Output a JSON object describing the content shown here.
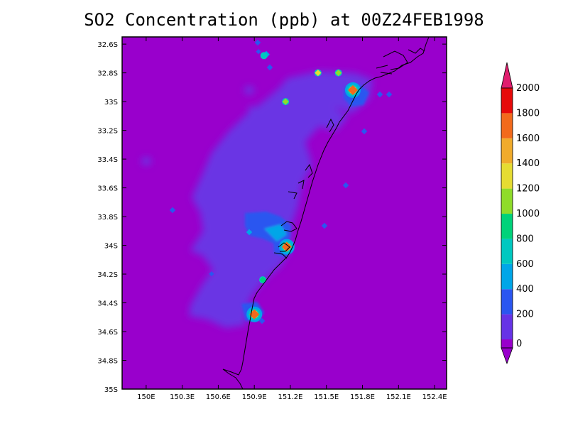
{
  "title": "SO2 Concentration (ppb) at 00Z24FEB1998",
  "chart_data": {
    "type": "heatmap",
    "title": "SO2 Concentration (ppb) at 00Z24FEB1998",
    "x_ticks": [
      "150E",
      "150.3E",
      "150.6E",
      "150.9E",
      "151.2E",
      "151.5E",
      "151.8E",
      "152.1E",
      "152.4E"
    ],
    "x_values": [
      150.0,
      150.3,
      150.6,
      150.9,
      151.2,
      151.5,
      151.8,
      152.1,
      152.4
    ],
    "y_ticks": [
      "32.6S",
      "32.8S",
      "33S",
      "33.2S",
      "33.4S",
      "33.6S",
      "33.8S",
      "34S",
      "34.2S",
      "34.4S",
      "34.6S",
      "34.8S",
      "35S"
    ],
    "y_values": [
      -32.6,
      -32.8,
      -33.0,
      -33.2,
      -33.4,
      -33.6,
      -33.8,
      -34.0,
      -34.2,
      -34.4,
      -34.6,
      -34.8,
      -35.0
    ],
    "xlim": [
      149.8,
      152.5
    ],
    "ylim": [
      -35.0,
      -32.55
    ],
    "colorbar": {
      "labels": [
        "0",
        "200",
        "400",
        "600",
        "800",
        "1000",
        "1200",
        "1400",
        "1600",
        "1800",
        "2000"
      ],
      "colors": [
        "#9900cc",
        "#6633e6",
        "#2a56f0",
        "#00a6e8",
        "#00c8c0",
        "#00d27a",
        "#8fdc2a",
        "#e6dc32",
        "#f0ab2b",
        "#f26a1c",
        "#e60a0a",
        "#e01e6e"
      ]
    },
    "hotspots": [
      {
        "lon": 151.72,
        "lat": -32.92,
        "value": 1800
      },
      {
        "lon": 151.17,
        "lat": -34.01,
        "value": 1800
      },
      {
        "lon": 150.9,
        "lat": -34.48,
        "value": 1900
      },
      {
        "lon": 151.43,
        "lat": -32.8,
        "value": 1500
      },
      {
        "lon": 151.6,
        "lat": -32.8,
        "value": 1200
      },
      {
        "lon": 151.16,
        "lat": -33.0,
        "value": 1300
      },
      {
        "lon": 150.98,
        "lat": -32.68,
        "value": 900
      },
      {
        "lon": 150.97,
        "lat": -34.24,
        "value": 1000
      }
    ]
  }
}
